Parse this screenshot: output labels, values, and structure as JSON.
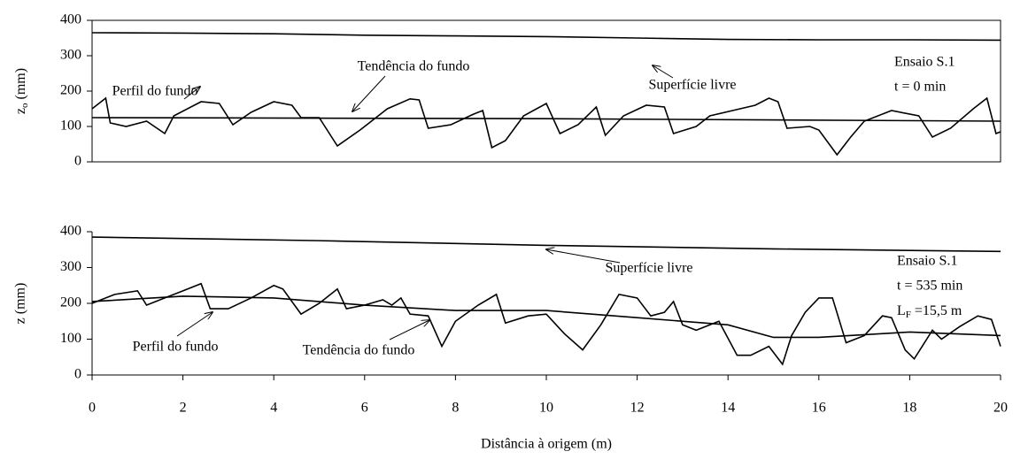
{
  "chart_data": [
    {
      "type": "line",
      "ylabel": {
        "main": "z",
        "sub": "o",
        "rest": " (mm)"
      },
      "xlim": [
        0,
        20
      ],
      "ylim": [
        0,
        400
      ],
      "yticks": [
        0,
        100,
        200,
        300,
        400
      ],
      "color": "#000000",
      "series": [
        {
          "name": "Superfície livre",
          "x": [
            0,
            2,
            4,
            6,
            8,
            10,
            12,
            14,
            16,
            18,
            20
          ],
          "values": [
            365,
            364,
            362,
            358,
            356,
            354,
            350,
            346,
            345,
            345,
            344
          ]
        },
        {
          "name": "Perfil do fundo",
          "x": [
            0,
            0.3,
            0.4,
            0.75,
            1.2,
            1.6,
            1.8,
            2.4,
            2.8,
            3.1,
            3.5,
            4.0,
            4.4,
            4.6,
            5.0,
            5.4,
            5.9,
            6.5,
            7.0,
            7.2,
            7.4,
            7.9,
            8.4,
            8.6,
            8.8,
            9.1,
            9.5,
            10.0,
            10.3,
            10.7,
            11.1,
            11.3,
            11.7,
            12.2,
            12.6,
            12.8,
            13.3,
            13.6,
            14.1,
            14.6,
            14.9,
            15.1,
            15.3,
            15.8,
            16.0,
            16.4,
            16.7,
            17.0,
            17.6,
            18.2,
            18.5,
            18.9,
            19.4,
            19.7,
            19.9,
            20
          ],
          "values": [
            150,
            180,
            110,
            100,
            115,
            80,
            130,
            170,
            165,
            105,
            140,
            170,
            160,
            125,
            125,
            45,
            90,
            150,
            178,
            175,
            95,
            105,
            135,
            145,
            40,
            60,
            130,
            165,
            80,
            105,
            155,
            75,
            130,
            160,
            155,
            80,
            100,
            130,
            145,
            160,
            180,
            170,
            95,
            100,
            90,
            20,
            70,
            115,
            145,
            130,
            70,
            95,
            150,
            180,
            80,
            85
          ]
        },
        {
          "name": "Tendência do fundo",
          "x": [
            0,
            10,
            20
          ],
          "values": [
            125,
            122,
            115
          ]
        }
      ],
      "annotations": [
        "Ensaio S.1",
        "t = 0 min"
      ]
    },
    {
      "type": "line",
      "ylabel": "z (mm)",
      "xlabel": "Distância à origem (m)",
      "xlim": [
        0,
        20
      ],
      "ylim": [
        0,
        400
      ],
      "yticks": [
        0,
        100,
        200,
        300,
        400
      ],
      "xticks": [
        0,
        2,
        4,
        6,
        8,
        10,
        12,
        14,
        16,
        18,
        20
      ],
      "color": "#000000",
      "series": [
        {
          "name": "Superfície livre",
          "x": [
            0,
            5,
            10,
            15,
            20
          ],
          "values": [
            385,
            375,
            362,
            352,
            345
          ]
        },
        {
          "name": "Perfil do fundo",
          "x": [
            0,
            0.5,
            1.0,
            1.2,
            1.6,
            2.0,
            2.4,
            2.6,
            3.0,
            3.5,
            4.0,
            4.2,
            4.6,
            5.0,
            5.4,
            5.6,
            6.0,
            6.4,
            6.6,
            6.8,
            7.0,
            7.4,
            7.7,
            8.0,
            8.5,
            8.9,
            9.1,
            9.6,
            10.0,
            10.4,
            10.8,
            11.2,
            11.6,
            12.0,
            12.3,
            12.6,
            12.8,
            13.0,
            13.3,
            13.8,
            14.2,
            14.5,
            14.9,
            15.2,
            15.4,
            15.7,
            16.0,
            16.3,
            16.6,
            17.0,
            17.4,
            17.6,
            17.9,
            18.1,
            18.5,
            18.7,
            19.1,
            19.5,
            19.8,
            20
          ],
          "values": [
            200,
            225,
            235,
            195,
            215,
            235,
            255,
            185,
            185,
            215,
            250,
            240,
            170,
            200,
            240,
            185,
            195,
            210,
            195,
            215,
            170,
            165,
            80,
            150,
            195,
            225,
            145,
            165,
            170,
            115,
            70,
            140,
            225,
            215,
            165,
            175,
            205,
            140,
            125,
            150,
            55,
            55,
            80,
            30,
            110,
            175,
            215,
            215,
            90,
            110,
            165,
            160,
            70,
            45,
            125,
            100,
            135,
            165,
            155,
            80
          ]
        },
        {
          "name": "Tendência do fundo",
          "x": [
            0,
            2,
            4,
            6,
            8,
            10,
            12,
            14,
            15,
            16,
            18,
            20
          ],
          "values": [
            205,
            220,
            215,
            195,
            180,
            180,
            160,
            140,
            105,
            105,
            120,
            110
          ]
        }
      ],
      "annotations": [
        "Ensaio S.1",
        "t = 535 min",
        {
          "main": "L",
          "sub": "F",
          "rest": " =15,5 m"
        }
      ]
    }
  ]
}
